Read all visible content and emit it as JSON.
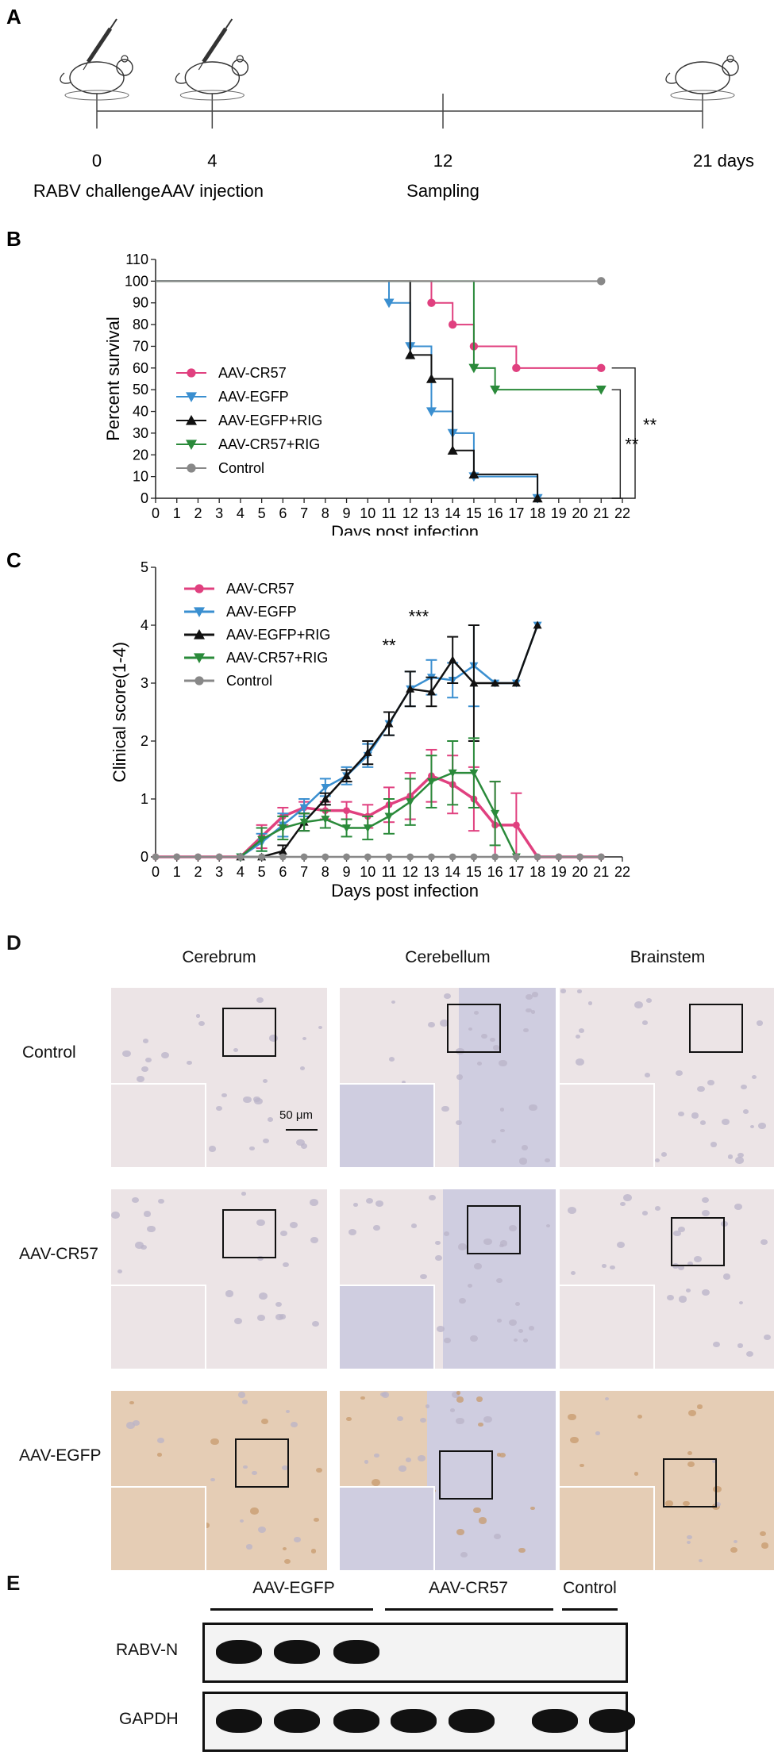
{
  "panels": {
    "A": "A",
    "B": "B",
    "C": "C",
    "D": "D",
    "E": "E"
  },
  "timeline": {
    "points": [
      {
        "day": 0,
        "tick": "0",
        "event": "RABV challenge",
        "icon": "mouse-syringe-icon"
      },
      {
        "day": 4,
        "tick": "4",
        "event": "AAV injection",
        "icon": "mouse-syringe-icon"
      },
      {
        "day": 12,
        "tick": "12",
        "event": "Sampling",
        "icon": ""
      },
      {
        "day": 21,
        "tick": "21 days",
        "event": "",
        "icon": "mouse-icon"
      }
    ]
  },
  "chart_data": [
    {
      "type": "line",
      "style": "survival-step",
      "xlabel": "Days post infection",
      "ylabel": "Percent survival",
      "xlim": [
        0,
        22
      ],
      "ylim": [
        0,
        110
      ],
      "xticks": [
        0,
        1,
        2,
        3,
        4,
        5,
        6,
        7,
        8,
        9,
        10,
        11,
        12,
        13,
        14,
        15,
        16,
        17,
        18,
        19,
        20,
        21,
        22
      ],
      "yticks": [
        0,
        10,
        20,
        30,
        40,
        50,
        60,
        70,
        80,
        90,
        100,
        110
      ],
      "legend_position": "left",
      "significance": [
        {
          "label": "**",
          "from": "AAV-CR57+RIG",
          "to": "AAV-EGFP+RIG"
        },
        {
          "label": "**",
          "from": "AAV-CR57",
          "to": "AAV-EGFP"
        }
      ],
      "series": [
        {
          "name": "AAV-CR57",
          "color": "#e0407f",
          "marker": "circle",
          "steps": [
            [
              0,
              100
            ],
            [
              13,
              90
            ],
            [
              14,
              80
            ],
            [
              15,
              70
            ],
            [
              17,
              60
            ],
            [
              21,
              60
            ]
          ],
          "markers": [
            [
              13,
              90
            ],
            [
              14,
              80
            ],
            [
              15,
              70
            ],
            [
              17,
              60
            ],
            [
              21,
              60
            ]
          ]
        },
        {
          "name": "AAV-EGFP",
          "color": "#3a8fd0",
          "marker": "triangle-down",
          "steps": [
            [
              0,
              100
            ],
            [
              11,
              90
            ],
            [
              12,
              70
            ],
            [
              13,
              40
            ],
            [
              14,
              30
            ],
            [
              15,
              10
            ],
            [
              18,
              0
            ]
          ],
          "markers": [
            [
              11,
              90
            ],
            [
              12,
              70
            ],
            [
              13,
              40
            ],
            [
              14,
              30
            ],
            [
              15,
              10
            ],
            [
              18,
              0
            ]
          ]
        },
        {
          "name": "AAV-EGFP+RIG",
          "color": "#111111",
          "marker": "triangle-up",
          "steps": [
            [
              0,
              100
            ],
            [
              12,
              66
            ],
            [
              13,
              55
            ],
            [
              14,
              22
            ],
            [
              15,
              11
            ],
            [
              18,
              0
            ]
          ],
          "markers": [
            [
              12,
              66
            ],
            [
              13,
              55
            ],
            [
              14,
              22
            ],
            [
              15,
              11
            ],
            [
              18,
              0
            ]
          ]
        },
        {
          "name": "AAV-CR57+RIG",
          "color": "#2a8a3a",
          "marker": "triangle-down",
          "steps": [
            [
              0,
              100
            ],
            [
              15,
              60
            ],
            [
              16,
              50
            ],
            [
              21,
              50
            ]
          ],
          "markers": [
            [
              15,
              60
            ],
            [
              16,
              50
            ],
            [
              21,
              50
            ]
          ]
        },
        {
          "name": "Control",
          "color": "#888888",
          "marker": "circle",
          "steps": [
            [
              0,
              100
            ],
            [
              21,
              100
            ]
          ],
          "markers": [
            [
              21,
              100
            ]
          ]
        }
      ]
    },
    {
      "type": "line",
      "style": "errorbar",
      "xlabel": "Days post infection",
      "ylabel": "Clinical score(1-4)",
      "xlim": [
        0,
        22
      ],
      "ylim": [
        0,
        5
      ],
      "xticks": [
        0,
        1,
        2,
        3,
        4,
        5,
        6,
        7,
        8,
        9,
        10,
        11,
        12,
        13,
        14,
        15,
        16,
        17,
        18,
        19,
        20,
        21,
        22
      ],
      "yticks": [
        0,
        1,
        2,
        3,
        4,
        5
      ],
      "legend_position": "top-left",
      "annotations": [
        {
          "label": "**",
          "x": 11,
          "y": 3.55
        },
        {
          "label": "***",
          "x": 12.4,
          "y": 4.05
        }
      ],
      "series": [
        {
          "name": "AAV-CR57",
          "color": "#e0407f",
          "marker": "circle",
          "points": [
            [
              0,
              0,
              0
            ],
            [
              1,
              0,
              0
            ],
            [
              2,
              0,
              0
            ],
            [
              3,
              0,
              0
            ],
            [
              4,
              0,
              0
            ],
            [
              5,
              0.35,
              0.2
            ],
            [
              6,
              0.7,
              0.15
            ],
            [
              7,
              0.85,
              0.1
            ],
            [
              8,
              0.8,
              0.15
            ],
            [
              9,
              0.8,
              0.15
            ],
            [
              10,
              0.7,
              0.2
            ],
            [
              11,
              0.9,
              0.3
            ],
            [
              12,
              1.05,
              0.4
            ],
            [
              13,
              1.4,
              0.45
            ],
            [
              14,
              1.25,
              0.5
            ],
            [
              15,
              1.0,
              0.55
            ],
            [
              16,
              0.55,
              0.75
            ],
            [
              17,
              0.55,
              0.55
            ],
            [
              18,
              0,
              0
            ],
            [
              19,
              0,
              0
            ],
            [
              20,
              0,
              0
            ],
            [
              21,
              0,
              0
            ]
          ]
        },
        {
          "name": "AAV-EGFP",
          "color": "#3a8fd0",
          "marker": "triangle-down",
          "points": [
            [
              4,
              0,
              0
            ],
            [
              5,
              0.25,
              0.15
            ],
            [
              6,
              0.55,
              0.2
            ],
            [
              7,
              0.85,
              0.15
            ],
            [
              8,
              1.2,
              0.15
            ],
            [
              9,
              1.4,
              0.15
            ],
            [
              10,
              1.75,
              0.2
            ],
            [
              11,
              2.3,
              0.2
            ],
            [
              12,
              2.9,
              0.3
            ],
            [
              13,
              3.1,
              0.3
            ],
            [
              14,
              3.05,
              0.3
            ],
            [
              15,
              3.3,
              0.7
            ],
            [
              16,
              3.0,
              0
            ],
            [
              17,
              3.0,
              0
            ],
            [
              18,
              4.0,
              0
            ]
          ]
        },
        {
          "name": "AAV-EGFP+RIG",
          "color": "#111111",
          "marker": "triangle-up",
          "points": [
            [
              4,
              0,
              0
            ],
            [
              5,
              0,
              0
            ],
            [
              6,
              0.1,
              0.1
            ],
            [
              7,
              0.6,
              0.15
            ],
            [
              8,
              1.0,
              0.1
            ],
            [
              9,
              1.4,
              0.1
            ],
            [
              10,
              1.8,
              0.2
            ],
            [
              11,
              2.3,
              0.2
            ],
            [
              12,
              2.9,
              0.3
            ],
            [
              13,
              2.85,
              0.25
            ],
            [
              14,
              3.4,
              0.4
            ],
            [
              15,
              3.0,
              1.0
            ],
            [
              16,
              3.0,
              0
            ],
            [
              17,
              3.0,
              0
            ],
            [
              18,
              4.0,
              0
            ]
          ]
        },
        {
          "name": "AAV-CR57+RIG",
          "color": "#2a8a3a",
          "marker": "triangle-down",
          "points": [
            [
              4,
              0,
              0
            ],
            [
              5,
              0.3,
              0.2
            ],
            [
              6,
              0.5,
              0.2
            ],
            [
              7,
              0.6,
              0.15
            ],
            [
              8,
              0.65,
              0.15
            ],
            [
              9,
              0.5,
              0.15
            ],
            [
              10,
              0.5,
              0.2
            ],
            [
              11,
              0.7,
              0.3
            ],
            [
              12,
              0.95,
              0.4
            ],
            [
              13,
              1.3,
              0.45
            ],
            [
              14,
              1.45,
              0.55
            ],
            [
              15,
              1.45,
              0.6
            ],
            [
              16,
              0.75,
              0.55
            ],
            [
              17,
              0,
              0
            ]
          ]
        },
        {
          "name": "Control",
          "color": "#888888",
          "marker": "circle",
          "points": [
            [
              0,
              0,
              0
            ],
            [
              1,
              0,
              0
            ],
            [
              2,
              0,
              0
            ],
            [
              3,
              0,
              0
            ],
            [
              4,
              0,
              0
            ],
            [
              5,
              0,
              0
            ],
            [
              6,
              0,
              0
            ],
            [
              7,
              0,
              0
            ],
            [
              8,
              0,
              0
            ],
            [
              9,
              0,
              0
            ],
            [
              10,
              0,
              0
            ],
            [
              11,
              0,
              0
            ],
            [
              12,
              0,
              0
            ],
            [
              13,
              0,
              0
            ],
            [
              14,
              0,
              0
            ],
            [
              15,
              0,
              0
            ],
            [
              16,
              0,
              0
            ],
            [
              17,
              0,
              0
            ],
            [
              18,
              0,
              0
            ],
            [
              19,
              0,
              0
            ],
            [
              20,
              0,
              0
            ],
            [
              21,
              0,
              0
            ]
          ]
        }
      ]
    }
  ],
  "histology": {
    "columns": [
      "Cerebrum",
      "Cerebellum",
      "Brainstem"
    ],
    "rows": [
      "Control",
      "AAV-CR57",
      "AAV-EGFP"
    ],
    "scale_bar": "50 μm"
  },
  "western": {
    "groups": [
      "AAV-EGFP",
      "AAV-CR57",
      "Control"
    ],
    "bands": [
      "RABV-N",
      "GAPDH"
    ]
  },
  "colors": {
    "tissue_control": "#ece4e6",
    "tissue_cerebellum": "#cfcde0",
    "tissue_positive": "#e5cdb5"
  }
}
